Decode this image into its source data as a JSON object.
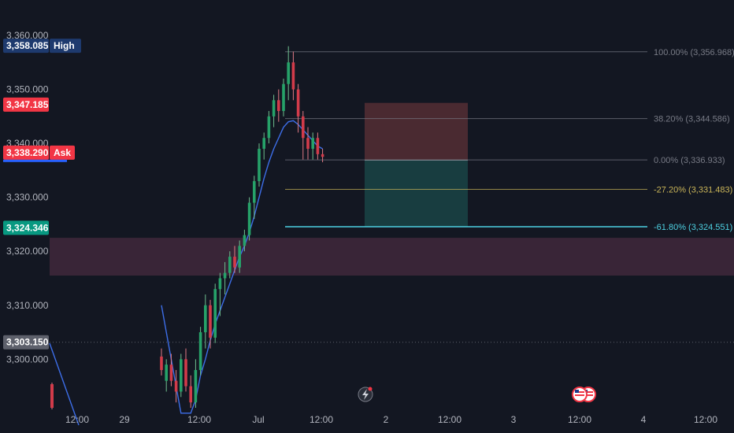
{
  "chart_data": {
    "type": "candlestick",
    "title": "",
    "xlabel": "",
    "ylabel": "",
    "ylim": [
      3290,
      3362
    ],
    "y_ticks": [
      "3,360.000",
      "3,350.000",
      "3,340.000",
      "3,330.000",
      "3,320.000",
      "3,310.000",
      "3,300.000"
    ],
    "x_ticks": [
      "12:00",
      "29",
      "12:00",
      "Jul",
      "12:00",
      "2",
      "12:00",
      "3",
      "12:00",
      "4",
      "12:00"
    ],
    "price_tags": [
      {
        "name": "high-tag",
        "value": "3,358.085",
        "label": "High",
        "color": "#1e3a6e"
      },
      {
        "name": "bid-tag",
        "value": "3,347.185",
        "label": "",
        "color": "#f23645"
      },
      {
        "name": "ask-tag",
        "value": "3,338.290",
        "label": "Ask",
        "color": "#f23645"
      },
      {
        "name": "level-tag",
        "value": "3,324.346",
        "label": "",
        "color": "#089981"
      },
      {
        "name": "low-tag",
        "value": "3,303.150",
        "label": "",
        "color": "#5d606b"
      }
    ],
    "fib_levels": [
      {
        "ratio": "100.00%",
        "price": "3,356.968",
        "color": "#787b86"
      },
      {
        "ratio": "38.20%",
        "price": "3,344.586",
        "color": "#787b86"
      },
      {
        "ratio": "0.00%",
        "price": "3,336.933",
        "color": "#787b86"
      },
      {
        "ratio": "-27.20%",
        "price": "3,331.483",
        "color": "#c9b458"
      },
      {
        "ratio": "-61.80%",
        "price": "3,324.551",
        "color": "#4dd0e1"
      }
    ],
    "zones": {
      "demand_zone": [
        3315.5,
        3322.5
      ],
      "stop_zone": [
        3336.9,
        3347.5
      ],
      "target_zone": [
        3324.5,
        3336.9
      ]
    },
    "candles": [
      [
        3300.5,
        3302,
        3297,
        3298
      ],
      [
        3296,
        3300,
        3294,
        3299
      ],
      [
        3299,
        3301,
        3295,
        3296
      ],
      [
        3296,
        3298,
        3292,
        3294
      ],
      [
        3294,
        3301,
        3293,
        3300
      ],
      [
        3300,
        3302,
        3294,
        3295
      ],
      [
        3295,
        3297,
        3291,
        3292
      ],
      [
        3292,
        3300,
        3291,
        3298
      ],
      [
        3298,
        3306,
        3297,
        3305
      ],
      [
        3305,
        3312,
        3302,
        3310
      ],
      [
        3310,
        3311,
        3302,
        3304
      ],
      [
        3304,
        3314,
        3303,
        3313
      ],
      [
        3313,
        3316,
        3308,
        3315
      ],
      [
        3315,
        3318,
        3312,
        3316
      ],
      [
        3316,
        3320,
        3315,
        3319
      ],
      [
        3319,
        3321,
        3316,
        3317
      ],
      [
        3317,
        3322,
        3316,
        3321
      ],
      [
        3321,
        3324,
        3320,
        3323
      ],
      [
        3323,
        3330,
        3322,
        3329
      ],
      [
        3329,
        3334,
        3326,
        3333
      ],
      [
        3333,
        3340,
        3332,
        3339
      ],
      [
        3339,
        3342,
        3337,
        3341
      ],
      [
        3341,
        3346,
        3340,
        3345
      ],
      [
        3345,
        3349,
        3343,
        3348
      ],
      [
        3348,
        3350,
        3344,
        3346
      ],
      [
        3346,
        3352,
        3345,
        3351
      ],
      [
        3351,
        3358,
        3348,
        3355
      ],
      [
        3355,
        3357,
        3348,
        3350
      ],
      [
        3350,
        3351,
        3342,
        3345
      ],
      [
        3345,
        3346,
        3337,
        3341
      ],
      [
        3341,
        3343,
        3337,
        3339
      ],
      [
        3339,
        3342,
        3337,
        3341
      ],
      [
        3341,
        3342,
        3337,
        3338
      ],
      [
        3338,
        3339,
        3336.5,
        3337.5
      ]
    ],
    "ma_line": [
      3310.0,
      3305.0,
      3300.0,
      3295.0,
      3290.0,
      3290.0,
      3290.0,
      3292.5,
      3297.0,
      3300.0,
      3303.5,
      3306.5,
      3309.0,
      3311.5,
      3314.0,
      3316.5,
      3319.0,
      3321.0,
      3323.5,
      3326.5,
      3330.0,
      3333.5,
      3336.5,
      3339.0,
      3341.0,
      3343.0,
      3344.0,
      3344.2,
      3343.5,
      3342.5,
      3341.5,
      3340.5,
      3339.5,
      3339.0
    ]
  }
}
